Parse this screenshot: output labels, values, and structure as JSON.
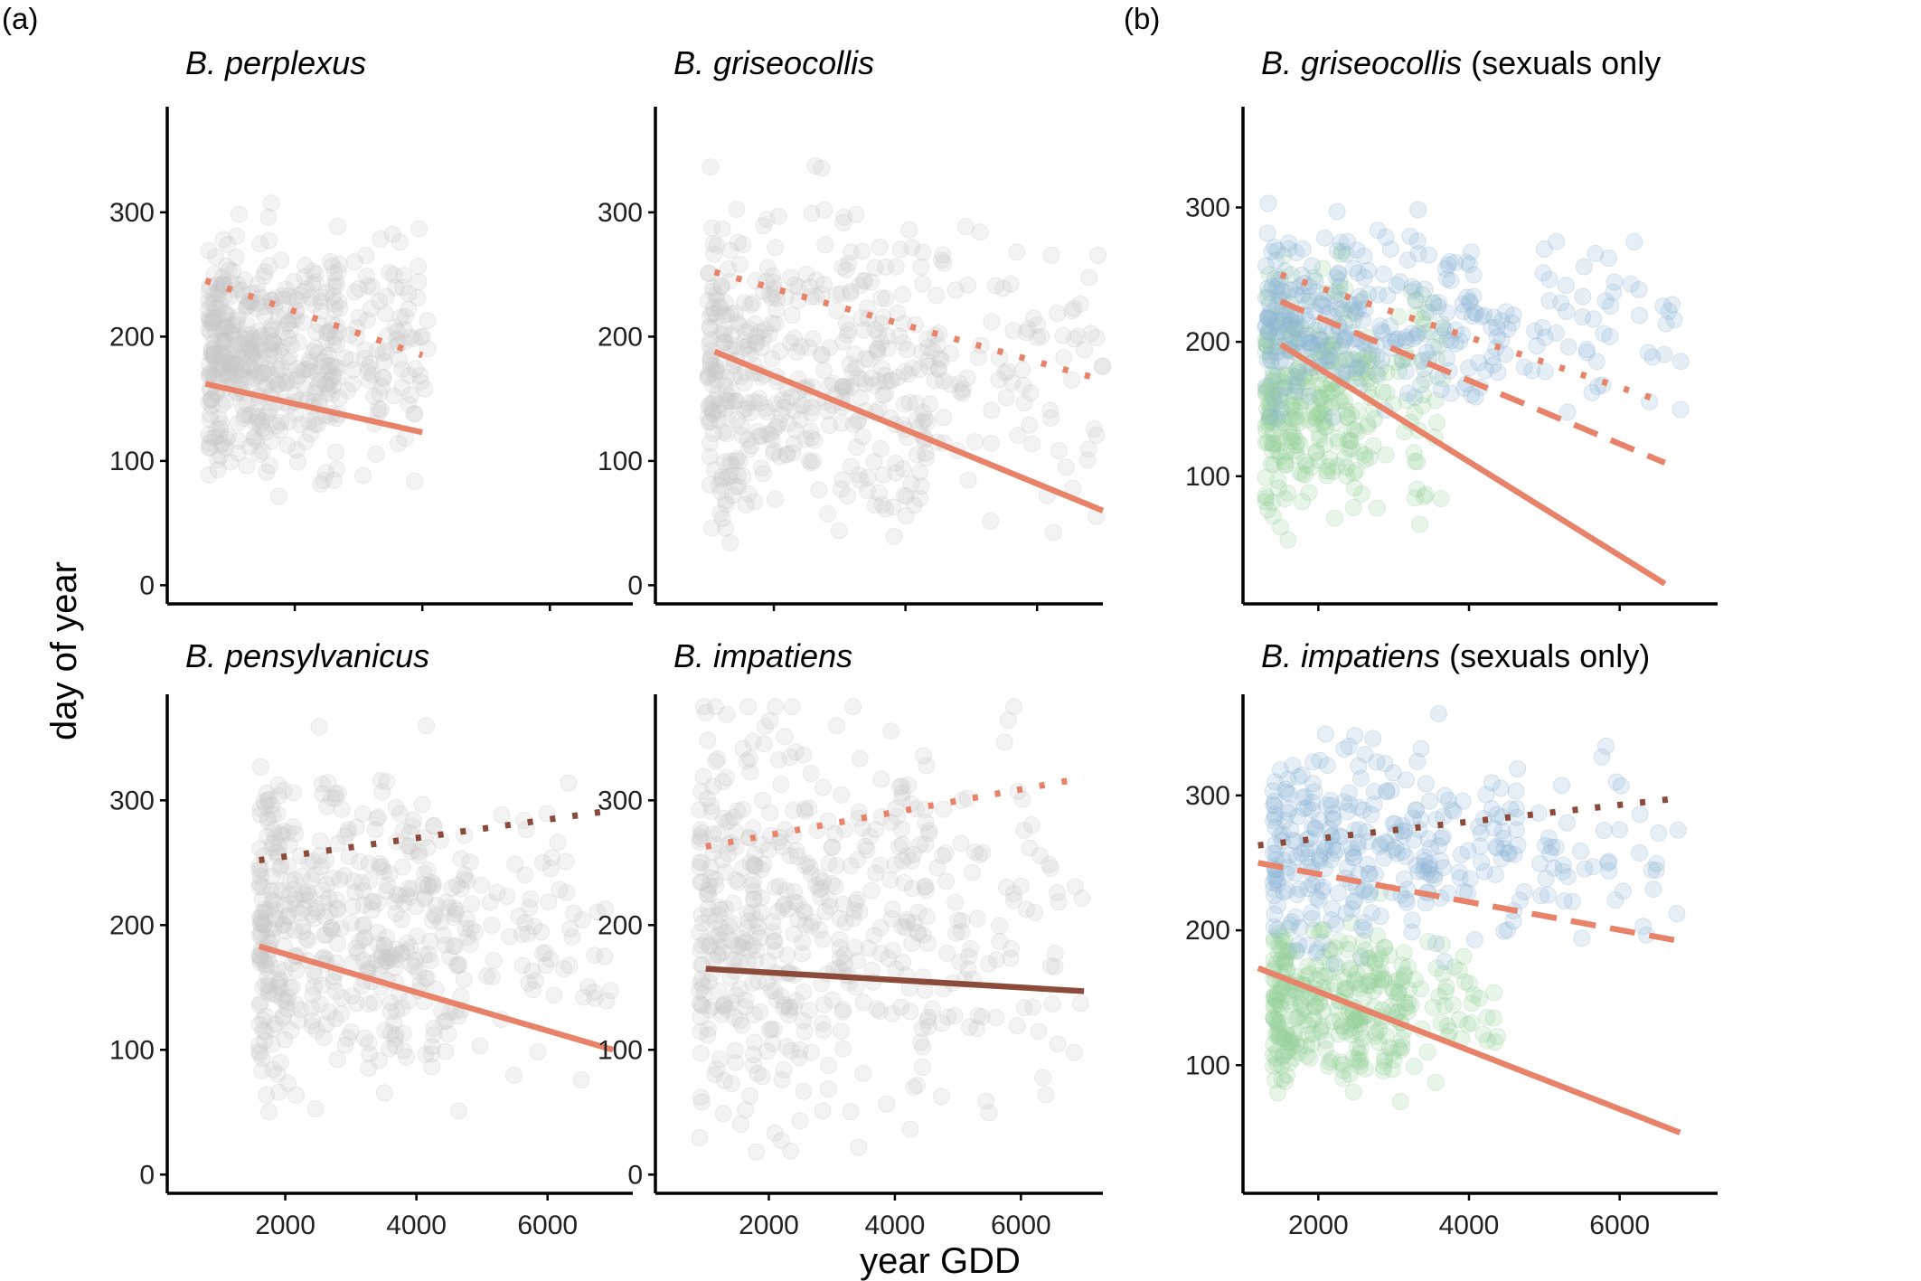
{
  "figure": {
    "panel_a_label": "(a)",
    "panel_b_label": "(b)",
    "xlabel": "year GDD",
    "ylabel": "day of year"
  },
  "colors": {
    "coral": "#E8836A",
    "brown": "#8B4A3A",
    "grey_points": "#c8c8c8",
    "blue_points": "#8fb4d6",
    "green_points": "#98d09a"
  },
  "chart_data": [
    {
      "type": "scatter",
      "panel": "a",
      "title_italic": "B. perplexus",
      "title_suffix": "",
      "xlim": [
        0,
        7300
      ],
      "ylim": [
        -15,
        385
      ],
      "xticks": [
        2000,
        4000,
        6000
      ],
      "yticks": [
        0,
        100,
        200,
        300
      ],
      "show_x_ticks": false,
      "points": {
        "color": "grey",
        "x_range": [
          650,
          4100
        ],
        "y_center": 185,
        "y_spread": 45
      },
      "series": [
        {
          "style": "dotted",
          "color": "coral",
          "x": [
            600,
            4000
          ],
          "y": [
            245,
            185
          ]
        },
        {
          "style": "solid",
          "color": "coral",
          "x": [
            600,
            4000
          ],
          "y": [
            162,
            123
          ]
        }
      ]
    },
    {
      "type": "scatter",
      "panel": "a",
      "title_italic": "B. griseocollis",
      "title_suffix": "",
      "xlim": [
        200,
        7000
      ],
      "ylim": [
        -15,
        385
      ],
      "xticks": [
        2000,
        4000,
        6000
      ],
      "yticks": [
        0,
        100,
        200,
        300
      ],
      "show_x_ticks": false,
      "points": {
        "color": "grey",
        "x_range": [
          1000,
          7000
        ],
        "y_center": 175,
        "y_spread": 55
      },
      "series": [
        {
          "style": "dotted",
          "color": "coral",
          "x": [
            1100,
            7000
          ],
          "y": [
            252,
            165
          ]
        },
        {
          "style": "solid",
          "color": "coral",
          "x": [
            1100,
            7000
          ],
          "y": [
            188,
            60
          ]
        }
      ]
    },
    {
      "type": "scatter",
      "panel": "a",
      "title_italic": "B. pensylvanicus",
      "title_suffix": "",
      "xlim": [
        200,
        7300
      ],
      "ylim": [
        -15,
        385
      ],
      "xticks": [
        2000,
        4000,
        6000
      ],
      "yticks": [
        0,
        100,
        200,
        300
      ],
      "show_x_ticks": true,
      "points": {
        "color": "grey",
        "x_range": [
          1600,
          7000
        ],
        "y_center": 195,
        "y_spread": 60
      },
      "series": [
        {
          "style": "dotted",
          "color": "brown",
          "x": [
            1600,
            7000
          ],
          "y": [
            252,
            292
          ]
        },
        {
          "style": "solid",
          "color": "coral",
          "x": [
            1600,
            7000
          ],
          "y": [
            183,
            100
          ]
        }
      ]
    },
    {
      "type": "scatter",
      "panel": "a",
      "title_italic": "B. impatiens",
      "title_suffix": "",
      "xlim": [
        200,
        7300
      ],
      "ylim": [
        -15,
        385
      ],
      "xticks": [
        2000,
        4000,
        6000
      ],
      "yticks": [
        0,
        100,
        200,
        300
      ],
      "show_x_ticks": true,
      "points": {
        "color": "grey",
        "x_range": [
          900,
          7000
        ],
        "y_center": 200,
        "y_spread": 75
      },
      "series": [
        {
          "style": "dotted",
          "color": "coral",
          "x": [
            1000,
            7000
          ],
          "y": [
            263,
            318
          ]
        },
        {
          "style": "solid",
          "color": "brown",
          "x": [
            1000,
            7000
          ],
          "y": [
            165,
            147
          ]
        }
      ]
    },
    {
      "type": "scatter",
      "panel": "b",
      "title_italic": "B. griseocollis",
      "title_suffix": " (sexuals only",
      "xlim": [
        1000,
        7300
      ],
      "ylim": [
        5,
        375
      ],
      "xticks": [
        2000,
        4000,
        6000
      ],
      "yticks": [
        100,
        200,
        300
      ],
      "show_x_ticks": false,
      "points_groups": [
        {
          "color": "green",
          "x_range": [
            1300,
            3700
          ],
          "y_center": 160,
          "y_spread": 45
        },
        {
          "color": "blue",
          "x_range": [
            1300,
            6900
          ],
          "y_center": 215,
          "y_spread": 30
        }
      ],
      "series": [
        {
          "style": "dotted",
          "color": "coral",
          "x": [
            1500,
            6600
          ],
          "y": [
            250,
            155
          ]
        },
        {
          "style": "dashed",
          "color": "coral",
          "x": [
            1500,
            6600
          ],
          "y": [
            230,
            110
          ]
        },
        {
          "style": "solid",
          "color": "coral",
          "x": [
            1500,
            6600
          ],
          "y": [
            198,
            20
          ]
        }
      ]
    },
    {
      "type": "scatter",
      "panel": "b",
      "title_italic": "B. impatiens",
      "title_suffix": " (sexuals only)",
      "xlim": [
        1000,
        7300
      ],
      "ylim": [
        5,
        375
      ],
      "xticks": [
        2000,
        4000,
        6000
      ],
      "yticks": [
        100,
        200,
        300
      ],
      "show_x_ticks": true,
      "points_groups": [
        {
          "color": "green",
          "x_range": [
            1400,
            4400
          ],
          "y_center": 145,
          "y_spread": 30
        },
        {
          "color": "blue",
          "x_range": [
            1400,
            6900
          ],
          "y_center": 260,
          "y_spread": 35
        }
      ],
      "series": [
        {
          "style": "dotted",
          "color": "brown",
          "x": [
            1200,
            6800
          ],
          "y": [
            263,
            298
          ]
        },
        {
          "style": "dashed",
          "color": "coral",
          "x": [
            1200,
            6800
          ],
          "y": [
            250,
            192
          ]
        },
        {
          "style": "solid",
          "color": "coral",
          "x": [
            1200,
            6800
          ],
          "y": [
            172,
            50
          ]
        }
      ]
    }
  ]
}
